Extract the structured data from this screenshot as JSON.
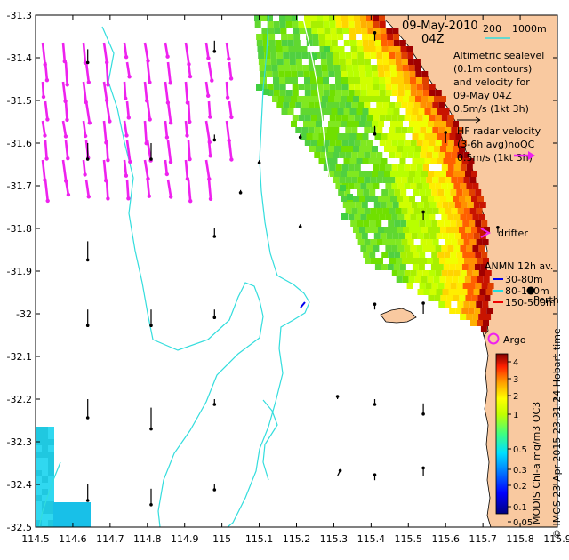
{
  "map": {
    "date_line1": "09-May-2010",
    "date_line2": "04Z",
    "scale_labels": [
      "200",
      "1000m"
    ],
    "legend_altimetry": [
      "Altimetric sealevel",
      "(0.1m contours)",
      "and velocity for",
      "09-May 04Z",
      "0.5m/s (1kt 3h)"
    ],
    "legend_hf": [
      "HF radar velocity",
      "(3-6h avg)noQC",
      "0.5m/s (1kt 3h)"
    ],
    "legend_drifter": "drifter",
    "legend_anmn": [
      "ANMN 12h av.",
      "30-80m",
      "80-150m",
      "150-500m"
    ],
    "place_perth": "Perth",
    "legend_argo": "Argo",
    "colorbar_label": "MODIS Chl-a mg/m3 OC3",
    "credit": "© IMOS 23-Apr-2015 23:31:24 Hobart time",
    "colorbar_ticks": [
      "4",
      "3",
      "2",
      "1",
      "0.5",
      "0.3",
      "0.2",
      "0.1",
      "0.05"
    ],
    "colors": {
      "land": "#f9c9a0",
      "bathy": "#33dddd",
      "hf_arrow": "#ee22ee",
      "argo": "#ee22ee",
      "anmn_30": "#0000ee",
      "anmn_80": "#22dddd",
      "anmn_150": "#ee0000"
    }
  },
  "chart_data": {
    "type": "map",
    "xlim": [
      114.5,
      115.9
    ],
    "ylim": [
      -32.5,
      -31.3
    ],
    "x_ticks": [
      114.5,
      114.6,
      114.7,
      114.8,
      114.9,
      115,
      115.1,
      115.2,
      115.3,
      115.4,
      115.5,
      115.6,
      115.7,
      115.8,
      115.9
    ],
    "y_ticks": [
      -31.3,
      -31.4,
      -31.5,
      -31.6,
      -31.7,
      -31.8,
      -31.9,
      -32,
      -32.1,
      -32.2,
      -32.3,
      -32.4,
      -32.5
    ],
    "x_tick_labels": [
      "114.5",
      "114.6",
      "114.7",
      "114.8",
      "114.9",
      "115",
      "115.1",
      "115.2",
      "115.3",
      "115.4",
      "115.5",
      "115.6",
      "115.7",
      "115.8",
      "115.9"
    ],
    "y_tick_labels": [
      "-31.3",
      "-31.4",
      "-31.5",
      "-31.6",
      "-31.7",
      "-31.8",
      "-31.9",
      "-32",
      "-32.1",
      "-32.2",
      "-32.3",
      "-32.4",
      "-32.5"
    ],
    "perth": {
      "lon": 115.86,
      "lat": -31.95
    },
    "argo": {
      "lon": 115.76,
      "lat": -32.08
    },
    "altimetry_arrows": [
      {
        "lon": 114.64,
        "lat": -31.38,
        "u": 0,
        "v": -0.05
      },
      {
        "lon": 114.64,
        "lat": -31.6,
        "u": 0,
        "v": -0.06
      },
      {
        "lon": 114.64,
        "lat": -31.83,
        "u": 0,
        "v": -0.07
      },
      {
        "lon": 114.64,
        "lat": -31.99,
        "u": 0,
        "v": -0.06
      },
      {
        "lon": 114.64,
        "lat": -32.2,
        "u": 0,
        "v": -0.07
      },
      {
        "lon": 114.64,
        "lat": -32.4,
        "u": 0,
        "v": -0.06
      },
      {
        "lon": 114.81,
        "lat": -31.6,
        "u": 0,
        "v": -0.06
      },
      {
        "lon": 114.81,
        "lat": -31.99,
        "u": 0,
        "v": -0.06
      },
      {
        "lon": 114.81,
        "lat": -32.22,
        "u": 0,
        "v": -0.08
      },
      {
        "lon": 114.81,
        "lat": -32.41,
        "u": 0,
        "v": -0.06
      },
      {
        "lon": 114.98,
        "lat": -31.36,
        "u": 0,
        "v": -0.04
      },
      {
        "lon": 114.98,
        "lat": -31.58,
        "u": 0,
        "v": -0.02
      },
      {
        "lon": 114.98,
        "lat": -31.8,
        "u": 0,
        "v": -0.03
      },
      {
        "lon": 114.98,
        "lat": -31.99,
        "u": 0,
        "v": -0.03
      },
      {
        "lon": 114.98,
        "lat": -32.2,
        "u": 0,
        "v": -0.02
      },
      {
        "lon": 114.98,
        "lat": -32.4,
        "u": 0,
        "v": -0.02
      },
      {
        "lon": 115.05,
        "lat": -31.71,
        "u": 0,
        "v": -0.01
      },
      {
        "lon": 115.1,
        "lat": -31.64,
        "u": 0,
        "v": -0.01
      },
      {
        "lon": 115.31,
        "lat": -32.38,
        "u": 0.01,
        "v": 0.02
      },
      {
        "lon": 115.31,
        "lat": -32.2,
        "u": 0,
        "v": 0.01
      },
      {
        "lon": 115.21,
        "lat": -31.58,
        "u": 0,
        "v": -0.01
      },
      {
        "lon": 115.21,
        "lat": -31.79,
        "u": 0,
        "v": -0.01
      },
      {
        "lon": 115.41,
        "lat": -31.36,
        "u": 0,
        "v": 0.03
      },
      {
        "lon": 115.41,
        "lat": -31.56,
        "u": 0,
        "v": -0.03
      },
      {
        "lon": 115.41,
        "lat": -31.99,
        "u": 0,
        "v": 0.02
      },
      {
        "lon": 115.41,
        "lat": -32.2,
        "u": 0,
        "v": -0.02
      },
      {
        "lon": 115.41,
        "lat": -32.39,
        "u": 0,
        "v": 0.02
      },
      {
        "lon": 115.54,
        "lat": -31.78,
        "u": 0,
        "v": 0.03
      },
      {
        "lon": 115.54,
        "lat": -32,
        "u": 0,
        "v": 0.04
      },
      {
        "lon": 115.54,
        "lat": -32.21,
        "u": 0,
        "v": -0.04
      },
      {
        "lon": 115.54,
        "lat": -32.38,
        "u": 0,
        "v": 0.03
      },
      {
        "lon": 115.6,
        "lat": -31.6,
        "u": 0,
        "v": 0.04
      },
      {
        "lon": 115.74,
        "lat": -31.81,
        "u": 0,
        "v": 0.02
      }
    ]
  }
}
